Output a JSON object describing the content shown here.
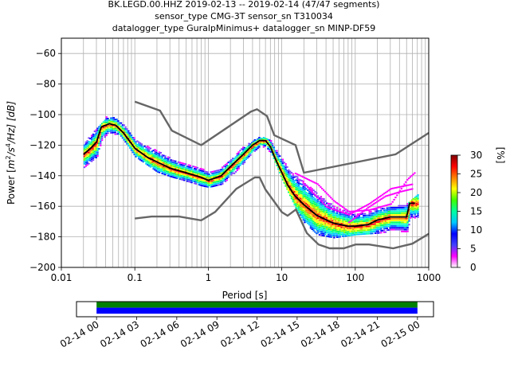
{
  "title_lines": [
    "BK.LEGD.00.HHZ   2019-02-13 -- 2019-02-14  (47/47 segments)",
    "sensor_type CMG-3T sensor_sn T310034",
    "datalogger_type GuralpMinimus+ datalogger_sn MINP-DF59"
  ],
  "chart_data": {
    "type": "heatmap",
    "xlabel": "Period [s]",
    "ylabel_parts": [
      "Power [",
      "m",
      "2",
      "/",
      "s",
      "4",
      "/Hz] [dB]"
    ],
    "xscale": "log",
    "xlim": [
      0.01,
      1000
    ],
    "ylim": [
      -200,
      -50
    ],
    "x_ticks": [
      {
        "value": 0.01,
        "label": "0.01"
      },
      {
        "value": 0.1,
        "label": "0.1"
      },
      {
        "value": 1,
        "label": "1"
      },
      {
        "value": 10,
        "label": "10"
      },
      {
        "value": 100,
        "label": "100"
      },
      {
        "value": 1000,
        "label": "1000"
      }
    ],
    "y_ticks": [
      -60,
      -80,
      -100,
      -120,
      -140,
      -160,
      -180,
      -200
    ],
    "grid": true,
    "colorbar": {
      "label": "[%]",
      "range": [
        0,
        30
      ],
      "ticks": [
        0,
        5,
        10,
        15,
        20,
        25,
        30
      ],
      "colors": [
        "#ffffff",
        "#ff00ff",
        "#4040ff",
        "#0000ff",
        "#00c8ff",
        "#00ffa0",
        "#40ff00",
        "#ffff00",
        "#ff8000",
        "#ff0000",
        "#800000"
      ]
    },
    "mean_curve": {
      "color": "#000000",
      "x": [
        0.02,
        0.025,
        0.03,
        0.035,
        0.045,
        0.055,
        0.07,
        0.1,
        0.15,
        0.2,
        0.3,
        0.5,
        0.8,
        1.0,
        1.5,
        2,
        3,
        4,
        5,
        6,
        7,
        8,
        10,
        12,
        15,
        20,
        30,
        50,
        80,
        100,
        150,
        200,
        300,
        400,
        500,
        550,
        650
      ],
      "y": [
        -126,
        -122,
        -118,
        -108,
        -106,
        -107,
        -112,
        -122,
        -128,
        -131,
        -135,
        -138,
        -141,
        -143,
        -140,
        -134,
        -126,
        -120,
        -117,
        -117,
        -121,
        -128,
        -138,
        -146,
        -153,
        -159,
        -166,
        -171,
        -173,
        -173,
        -172,
        -169,
        -167,
        -167,
        -167,
        -158,
        -158
      ]
    },
    "noise_models": {
      "color": "#666666",
      "nhnm": {
        "x": [
          0.1,
          0.22,
          0.32,
          0.8,
          3.8,
          4.6,
          6.3,
          7.9,
          15.4,
          20,
          354.8,
          1000
        ],
        "y": [
          -91.5,
          -97.4,
          -110.5,
          -120,
          -98,
          -96.5,
          -101,
          -113.5,
          -120,
          -138,
          -126,
          -112
        ]
      },
      "nlnm": {
        "x": [
          0.1,
          0.17,
          0.4,
          0.8,
          1.24,
          2.4,
          4.3,
          5.0,
          6.0,
          10,
          12,
          15.6,
          21.9,
          31.6,
          45,
          70,
          101,
          154,
          328,
          600,
          1000
        ],
        "y": [
          -168,
          -166.7,
          -166.7,
          -169.2,
          -163.7,
          -148.6,
          -141.1,
          -141.1,
          -149,
          -163.8,
          -166.2,
          -162.1,
          -177.5,
          -185,
          -187.5,
          -187.5,
          -185,
          -185,
          -187.5,
          -184.5,
          -178
        ]
      }
    },
    "spread": {
      "x": [
        0.02,
        0.03,
        0.04,
        0.06,
        0.08,
        0.1,
        0.2,
        0.3,
        0.5,
        0.8,
        1,
        1.5,
        2,
        3,
        5,
        7,
        10,
        15,
        20,
        30,
        50,
        100,
        200,
        300,
        500,
        700
      ],
      "upper": [
        -118,
        -108,
        -101,
        -102,
        -108,
        -115,
        -122,
        -127,
        -132,
        -134,
        -136,
        -134,
        -129,
        -120,
        -114,
        -116,
        -124,
        -134,
        -141,
        -150,
        -158,
        -161,
        -160,
        -160,
        -158,
        -152
      ],
      "lower": [
        -134,
        -127,
        -113,
        -112,
        -120,
        -127,
        -137,
        -140,
        -143,
        -146,
        -147,
        -145,
        -140,
        -131,
        -121,
        -124,
        -142,
        -160,
        -170,
        -178,
        -180,
        -178,
        -177,
        -176,
        -176,
        -170
      ],
      "outliers": [
        {
          "x": [
            15,
            30,
            50,
            80,
            150,
            300,
            500,
            650
          ],
          "y": [
            -138,
            -145,
            -156,
            -163,
            -162,
            -158,
            -142,
            -137
          ]
        },
        {
          "x": [
            20,
            40,
            80,
            150,
            300,
            600
          ],
          "y": [
            -145,
            -160,
            -165,
            -158,
            -148,
            -145
          ]
        },
        {
          "x": [
            80,
            150,
            250,
            400,
            600
          ],
          "y": [
            -170,
            -160,
            -153,
            -150,
            -148
          ]
        }
      ]
    },
    "timeline": {
      "tick_labels": [
        "02-14 00",
        "02-14 03",
        "02-14 06",
        "02-14 09",
        "02-14 12",
        "02-14 15",
        "02-14 18",
        "02-14 21",
        "02-15 00"
      ],
      "xlim_hours": [
        -1.5,
        25.2
      ],
      "bars": [
        {
          "color": "#008000",
          "start_hours": 0,
          "end_hours": 24
        },
        {
          "color": "#0000ff",
          "start_hours": 0,
          "end_hours": 24
        }
      ]
    }
  }
}
